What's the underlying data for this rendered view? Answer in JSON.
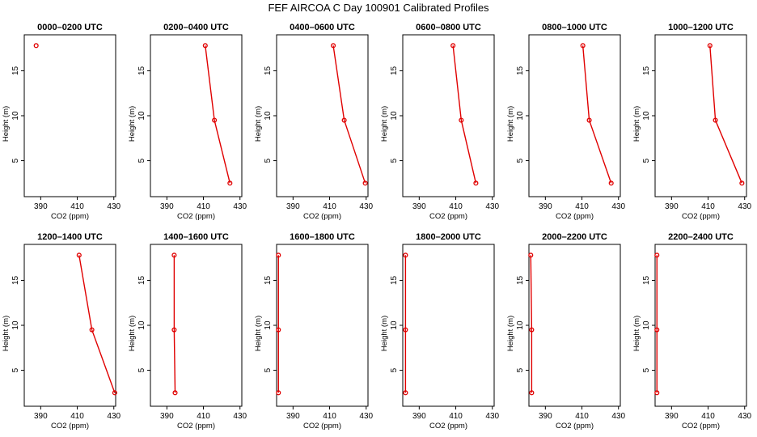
{
  "title": "FEF AIRCOA C  Day 100901  Calibrated Profiles",
  "colors": {
    "series": "#e00000",
    "axis": "#000000",
    "background": "#ffffff"
  },
  "chart_data": {
    "type": "line",
    "xlabel": "CO2 (ppm)",
    "ylabel": "Height (m)",
    "xticks": [
      "390",
      "410",
      "430"
    ],
    "yticks": [
      "5",
      "10",
      "15"
    ],
    "xlim": [
      381,
      431
    ],
    "ylim": [
      1,
      19
    ],
    "panels": [
      {
        "title": "0000–0200 UTC",
        "points": [
          {
            "x": 387.5,
            "y": 17.8
          }
        ]
      },
      {
        "title": "0200–0400 UTC",
        "points": [
          {
            "x": 411,
            "y": 17.8
          },
          {
            "x": 416,
            "y": 9.5
          },
          {
            "x": 424.5,
            "y": 2.5
          }
        ]
      },
      {
        "title": "0400–0600 UTC",
        "points": [
          {
            "x": 412,
            "y": 17.8
          },
          {
            "x": 418,
            "y": 9.5
          },
          {
            "x": 429.5,
            "y": 2.5
          }
        ]
      },
      {
        "title": "0600–0800 UTC",
        "points": [
          {
            "x": 408.5,
            "y": 17.8
          },
          {
            "x": 413,
            "y": 9.5
          },
          {
            "x": 421,
            "y": 2.5
          }
        ]
      },
      {
        "title": "0800–1000 UTC",
        "points": [
          {
            "x": 410.5,
            "y": 17.8
          },
          {
            "x": 414,
            "y": 9.5
          },
          {
            "x": 426,
            "y": 2.5
          }
        ]
      },
      {
        "title": "1000–1200 UTC",
        "points": [
          {
            "x": 411,
            "y": 17.8
          },
          {
            "x": 414,
            "y": 9.5
          },
          {
            "x": 428.5,
            "y": 2.5
          }
        ]
      },
      {
        "title": "1200–1400 UTC",
        "points": [
          {
            "x": 411,
            "y": 17.8
          },
          {
            "x": 418,
            "y": 9.5
          },
          {
            "x": 430.5,
            "y": 2.5
          }
        ]
      },
      {
        "title": "1400–1600 UTC",
        "points": [
          {
            "x": 394,
            "y": 17.8
          },
          {
            "x": 394,
            "y": 9.5
          },
          {
            "x": 394.5,
            "y": 2.5
          }
        ]
      },
      {
        "title": "1600–1800 UTC",
        "points": [
          {
            "x": 382,
            "y": 17.8
          },
          {
            "x": 382,
            "y": 9.5
          },
          {
            "x": 382,
            "y": 2.5
          }
        ]
      },
      {
        "title": "1800–2000 UTC",
        "points": [
          {
            "x": 382.5,
            "y": 17.8
          },
          {
            "x": 382.5,
            "y": 9.5
          },
          {
            "x": 382.5,
            "y": 2.5
          }
        ]
      },
      {
        "title": "2000–2200 UTC",
        "points": [
          {
            "x": 382,
            "y": 17.8
          },
          {
            "x": 382.5,
            "y": 9.5
          },
          {
            "x": 382.5,
            "y": 2.5
          }
        ]
      },
      {
        "title": "2200–2400 UTC",
        "points": [
          {
            "x": 382,
            "y": 17.8
          },
          {
            "x": 382,
            "y": 9.5
          },
          {
            "x": 382,
            "y": 2.5
          }
        ]
      }
    ]
  }
}
